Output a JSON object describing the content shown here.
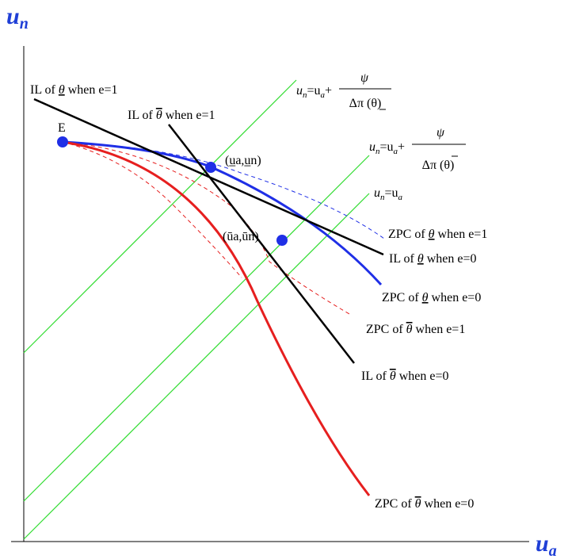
{
  "axes": {
    "y_title_main": "u",
    "y_title_sub": "n",
    "x_title_main": "u",
    "x_title_sub": "a"
  },
  "colors": {
    "green": "#2fdc2f",
    "blue": "#1f2fe6",
    "red": "#e61f1f",
    "black": "#000000",
    "axis_title": "#1f3fd6"
  },
  "points": {
    "e": "E",
    "upper": "(u̲a,u̲n)",
    "lower": "(ūa,ūn)"
  },
  "labels": {
    "il_low_e1": {
      "prefix": "IL of ",
      "theta": "θ",
      "suffix": " when e=1"
    },
    "il_high_e1": {
      "prefix": "IL of ",
      "theta": "θ",
      "suffix": " when e=1"
    },
    "zpc_low_e1": {
      "prefix": "ZPC of ",
      "theta": "θ",
      "suffix": " when e=1"
    },
    "il_low_e0": {
      "prefix": "IL of ",
      "theta": "θ",
      "suffix": " when e=0"
    },
    "zpc_low_e0": {
      "prefix": "ZPC of ",
      "theta": "θ",
      "suffix": " when e=0"
    },
    "zpc_high_e1": {
      "prefix": "ZPC of ",
      "theta": "θ",
      "suffix": " when e=1"
    },
    "il_high_e0": {
      "prefix": "IL of ",
      "theta": "θ",
      "suffix": " when e=0"
    },
    "zpc_high_e0": {
      "prefix": "ZPC of ",
      "theta": "θ",
      "suffix": " when e=0"
    }
  },
  "equations": {
    "eq1": {
      "lhs": "u",
      "lhs_sub": "n",
      "mid": "=u",
      "mid_sub": "a",
      "plus": "+",
      "num": "ψ",
      "den": "Δπ (θ)"
    },
    "eq2": {
      "lhs": "u",
      "lhs_sub": "n",
      "mid": "=u",
      "mid_sub": "a",
      "plus": "+",
      "num": "ψ",
      "den": "Δπ (θ)"
    },
    "eq3": {
      "lhs": "u",
      "lhs_sub": "n",
      "mid": "=u",
      "mid_sub": "a"
    }
  }
}
